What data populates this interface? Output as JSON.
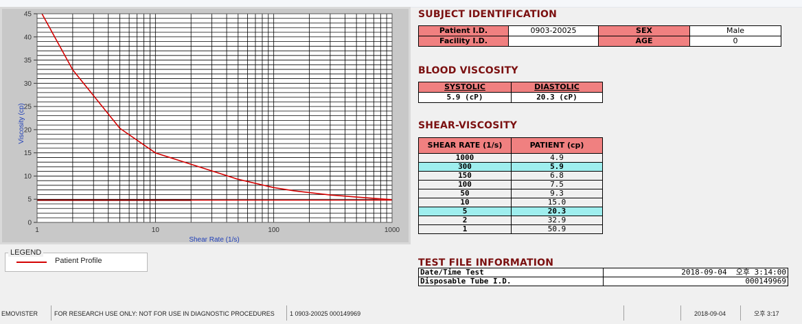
{
  "chart_data": {
    "type": "line",
    "title": "",
    "xlabel": "Shear Rate (1/s)",
    "ylabel": "Viscosity (cp)",
    "x_scale": "log",
    "xlim": [
      1,
      1000
    ],
    "ylim": [
      0,
      45
    ],
    "x_ticks": [
      1,
      10,
      100,
      1000
    ],
    "y_ticks": [
      0,
      5,
      10,
      15,
      20,
      25,
      30,
      35,
      40,
      45
    ],
    "grid": true,
    "series": [
      {
        "name": "Patient Profile",
        "color": "#d40000",
        "x": [
          1.1,
          2,
          5,
          10,
          50,
          100,
          150,
          300,
          1000
        ],
        "y": [
          45,
          32.9,
          20.3,
          15.0,
          9.3,
          7.5,
          6.8,
          5.9,
          4.9
        ]
      },
      {
        "name": "Patient Profile",
        "color": "#d40000",
        "x": [
          1,
          1000
        ],
        "y": [
          4.8,
          4.8
        ]
      }
    ],
    "legend": {
      "title": "LEGEND",
      "placement": "bottom-left"
    }
  },
  "subject": {
    "heading": "SUBJECT IDENTIFICATION",
    "patient_id_label": "Patient I.D.",
    "patient_id": "0903-20025",
    "sex_label": "SEX",
    "sex": "Male",
    "facility_label": "Facility I.D.",
    "facility": "",
    "age_label": "AGE",
    "age": "0"
  },
  "blood_viscosity": {
    "heading": "BLOOD VISCOSITY",
    "systolic_label": "SYSTOLIC",
    "diastolic_label": "DIASTOLIC",
    "systolic": "5.9 (cP)",
    "diastolic": "20.3 (cP)"
  },
  "shear": {
    "heading": "SHEAR-VISCOSITY",
    "col_rate": "SHEAR RATE (1/s)",
    "col_patient": "PATIENT (cp)",
    "rows": [
      {
        "rate": "1000",
        "value": "4.9"
      },
      {
        "rate": "300",
        "value": "5.9"
      },
      {
        "rate": "150",
        "value": "6.8"
      },
      {
        "rate": "100",
        "value": "7.5"
      },
      {
        "rate": "50",
        "value": "9.3"
      },
      {
        "rate": "10",
        "value": "15.0"
      },
      {
        "rate": "5",
        "value": "20.3"
      },
      {
        "rate": "2",
        "value": "32.9"
      },
      {
        "rate": "1",
        "value": "50.9"
      }
    ]
  },
  "test_file": {
    "heading": "TEST FILE INFORMATION",
    "datetime_label": "Date/Time Test",
    "datetime": "2018-09-04  오후 3:14:00",
    "tube_label": "Disposable Tube I.D.",
    "tube": "000149969"
  },
  "status": {
    "app": "EMOVISTER",
    "notice": "FOR RESEARCH USE ONLY: NOT FOR USE IN DIAGNOSTIC PROCEDURES",
    "record": "1  0903-20025  000149969",
    "date": "2018-09-04",
    "time": "오후 3:17"
  },
  "colors": {
    "curve": "#d40000",
    "header_fill": "#f08080",
    "highlight_fill": "#9eeeee",
    "heading_text": "#7b1010"
  }
}
